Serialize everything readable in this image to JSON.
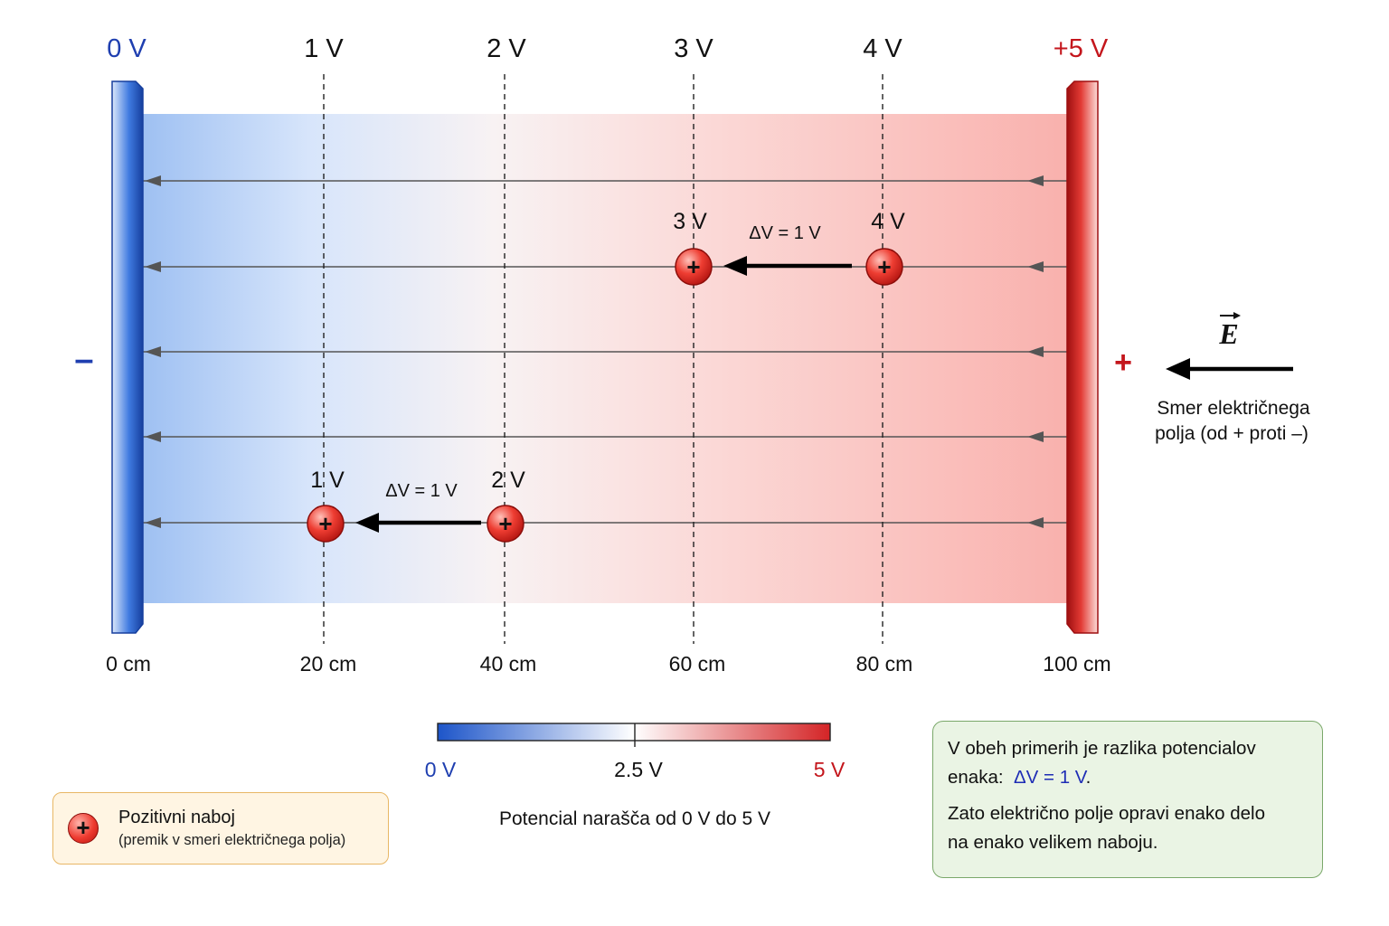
{
  "top_labels": [
    "0 V",
    "1 V",
    "2 V",
    "3 V",
    "4 V",
    "+5 V"
  ],
  "bottom_labels": [
    "0 cm",
    "20 cm",
    "40 cm",
    "60 cm",
    "80 cm",
    "100 cm"
  ],
  "plate_signs": {
    "negative": "–",
    "positive": "+"
  },
  "examples": [
    {
      "start_label": "4 V",
      "end_label": "3 V",
      "delta": "ΔV = 1 V"
    },
    {
      "start_label": "2 V",
      "end_label": "1 V",
      "delta": "ΔV = 1 V"
    }
  ],
  "charge_symbol": "+",
  "field": {
    "symbol": "E",
    "caption_line1": "Smer električnega",
    "caption_line2": "polja (od + proti –)"
  },
  "colorbar": {
    "min_label": "0 V",
    "mid_label": "2.5 V",
    "max_label": "5 V",
    "caption": "Potencial narašča od 0 V do 5 V"
  },
  "legend": {
    "title": "Pozitivni naboj",
    "subtitle": "(premik v smeri električnega polja)"
  },
  "info": {
    "line1": "V obeh primerih je razlika potencialov",
    "line2_prefix": "enaka:",
    "line2_value": "ΔV = 1 V",
    "line2_suffix": ".",
    "line3": "Zato električno polje opravi enako delo",
    "line4": "na enako velikem naboju."
  },
  "colors": {
    "negative": "#1f3fb0",
    "positive": "#c4161c",
    "blue_plate": "#1f55c8",
    "red_plate": "#d42426",
    "field_lines": "#555555",
    "info_accent": "#1e2db5"
  }
}
